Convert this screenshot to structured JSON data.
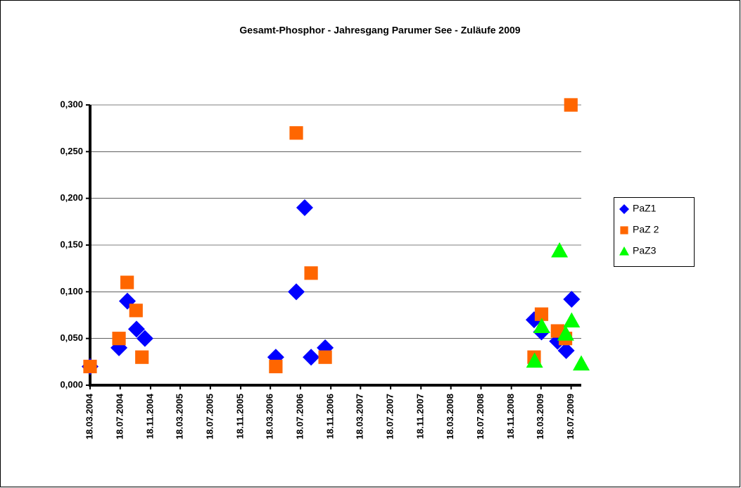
{
  "chart_data": {
    "type": "scatter",
    "title": "Gesamt-Phosphor - Jahresgang Parumer See - Zuläufe  2009",
    "xlim": [
      "18.03.2004",
      "28.08.2009"
    ],
    "xticks": [
      "18.03.2004",
      "18.07.2004",
      "18.11.2004",
      "18.03.2005",
      "18.07.2005",
      "18.11.2005",
      "18.03.2006",
      "18.07.2006",
      "18.11.2006",
      "18.03.2007",
      "18.07.2007",
      "18.11.2007",
      "18.03.2008",
      "18.07.2008",
      "18.11.2008",
      "18.03.2009",
      "18.07.2009"
    ],
    "ylim": [
      0,
      0.3
    ],
    "yticks": [
      {
        "value": 0,
        "label": "0,000"
      },
      {
        "value": 0.05,
        "label": "0,050"
      },
      {
        "value": 0.1,
        "label": "0,100"
      },
      {
        "value": 0.15,
        "label": "0,150"
      },
      {
        "value": 0.2,
        "label": "0,200"
      },
      {
        "value": 0.25,
        "label": "0,250"
      },
      {
        "value": 0.3,
        "label": "0,300"
      }
    ],
    "grid": true,
    "legend": "right",
    "series": [
      {
        "name": "PaZ1",
        "color": "#0000ff",
        "marker": "diamond",
        "x": [
          "18.03.2004",
          "13.07.2004",
          "16.08.2004",
          "22.09.2004",
          "26.10.2004",
          "09.04.2006",
          "01.07.2006",
          "04.08.2006",
          "30.08.2006",
          "26.10.2006",
          "18.02.2009",
          "20.03.2009",
          "24.05.2009",
          "28.06.2009",
          "20.07.2009"
        ],
        "values": [
          0.02,
          0.04,
          0.09,
          0.06,
          0.05,
          0.03,
          0.1,
          0.19,
          0.03,
          0.04,
          0.07,
          0.057,
          0.047,
          0.037,
          0.092
        ]
      },
      {
        "name": "PaZ 2",
        "color": "#ff6600",
        "marker": "square",
        "x": [
          "18.03.2004",
          "13.07.2004",
          "15.08.2004",
          "20.09.2004",
          "14.10.2004",
          "09.04.2006",
          "01.07.2006",
          "30.08.2006",
          "26.10.2006",
          "18.02.2009",
          "20.03.2009",
          "24.05.2009",
          "25.06.2009",
          "17.07.2009"
        ],
        "values": [
          0.02,
          0.05,
          0.11,
          0.08,
          0.03,
          0.02,
          0.27,
          0.12,
          0.03,
          0.03,
          0.076,
          0.058,
          0.05,
          0.3
        ]
      },
      {
        "name": "PaZ3",
        "color": "#00ff00",
        "marker": "triangle",
        "x": [
          "20.02.2009",
          "21.03.2009",
          "01.06.2009",
          "26.06.2009",
          "20.07.2009",
          "28.08.2009"
        ],
        "values": [
          0.026,
          0.063,
          0.144,
          0.055,
          0.069,
          0.023
        ]
      }
    ]
  }
}
